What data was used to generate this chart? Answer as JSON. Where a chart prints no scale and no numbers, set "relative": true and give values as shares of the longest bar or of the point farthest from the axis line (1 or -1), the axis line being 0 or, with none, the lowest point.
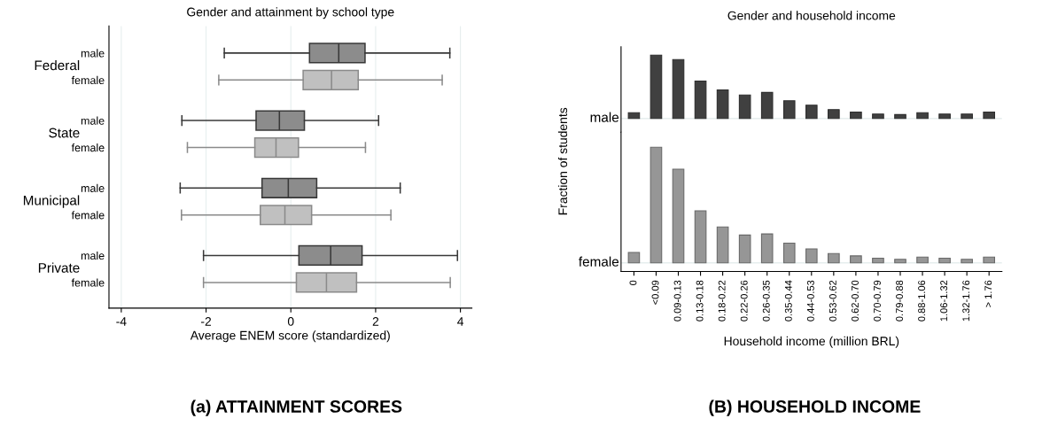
{
  "chart_data": [
    {
      "type": "box",
      "title": "Gender and attainment by school type",
      "xlabel": "Average ENEM score (standardized)",
      "orientation": "horizontal",
      "categories": [
        "male",
        "female",
        "male",
        "female",
        "male",
        "female",
        "male",
        "female"
      ],
      "grid": "x",
      "xlim": [
        -4.29,
        4.27
      ],
      "xticks": [
        -4,
        -2,
        0,
        2,
        4
      ],
      "colors": [
        "#8c8c8c",
        "#c0c0c0",
        "#8c8c8c",
        "#c0c0c0",
        "#8c8c8c",
        "#c0c0c0",
        "#8c8c8c",
        "#c0c0c0"
      ],
      "boxes": [
        {
          "low": -1.57,
          "q1": 0.44,
          "median": 1.13,
          "q3": 1.75,
          "high": 3.75
        },
        {
          "low": -1.7,
          "q1": 0.29,
          "median": 0.96,
          "q3": 1.59,
          "high": 3.57
        },
        {
          "low": -2.57,
          "q1": -0.82,
          "median": -0.27,
          "q3": 0.32,
          "high": 2.07
        },
        {
          "low": -2.44,
          "q1": -0.85,
          "median": -0.35,
          "q3": 0.18,
          "high": 1.76
        },
        {
          "low": -2.61,
          "q1": -0.68,
          "median": -0.06,
          "q3": 0.61,
          "high": 2.58
        },
        {
          "low": -2.58,
          "q1": -0.72,
          "median": -0.14,
          "q3": 0.49,
          "high": 2.36
        },
        {
          "low": -2.06,
          "q1": 0.19,
          "median": 0.94,
          "q3": 1.68,
          "high": 3.93
        },
        {
          "low": -2.06,
          "q1": 0.13,
          "median": 0.84,
          "q3": 1.55,
          "high": 3.76
        }
      ],
      "annotations": [
        "Federal",
        "State",
        "Municipal",
        "Private",
        "(a) ATTAINMENT SCORES"
      ]
    },
    {
      "type": "bar",
      "title": "Gender and household income",
      "relative": true,
      "tick_labels": false,
      "categories": [
        null,
        null,
        null,
        null,
        null,
        null,
        null,
        null,
        null,
        null,
        null,
        null,
        null,
        null,
        null,
        null,
        null
      ],
      "series": [
        {
          "color": "#404040",
          "values": [
            0.09,
            1.0,
            0.93,
            0.59,
            0.45,
            0.37,
            0.41,
            0.28,
            0.21,
            0.14,
            0.1,
            0.07,
            0.06,
            0.09,
            0.07,
            0.07,
            0.1
          ]
        }
      ],
      "annotations": [
        "male"
      ]
    },
    {
      "type": "bar",
      "xlabel": "Household income (million BRL)",
      "ylabel": "Fraction of students",
      "relative": true,
      "categories": [
        "0",
        "<0.09",
        "0.09-0.13",
        "0.13-0.18",
        "0.18-0.22",
        "0.22-0.26",
        "0.26-0.35",
        "0.35-0.44",
        "0.44-0.53",
        "0.53-0.62",
        "0.62-0.70",
        "0.70-0.79",
        "0.79-0.88",
        "0.88-1.06",
        "1.06-1.32",
        "1.32-1.76",
        "> 1.76"
      ],
      "series": [
        {
          "color": "#969696",
          "values": [
            0.09,
            1.0,
            0.81,
            0.45,
            0.31,
            0.24,
            0.25,
            0.17,
            0.12,
            0.08,
            0.06,
            0.04,
            0.03,
            0.05,
            0.04,
            0.03,
            0.05
          ]
        }
      ],
      "annotations": [
        "female",
        "(B) HOUSEHOLD INCOME"
      ]
    }
  ]
}
